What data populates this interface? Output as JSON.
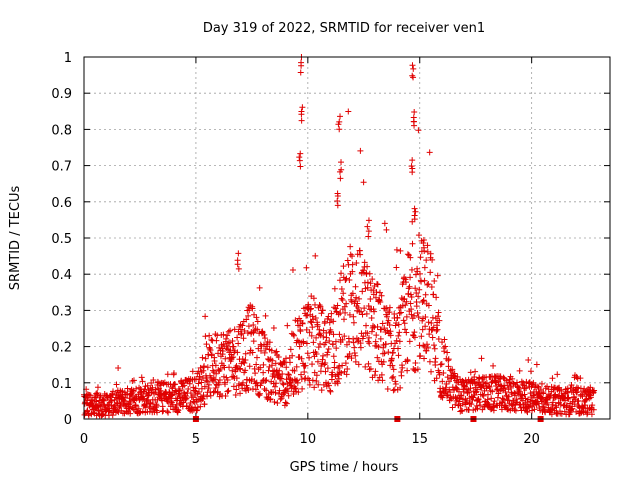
{
  "chart_data": {
    "type": "scatter",
    "title": "Day 319 of 2022, SRMTID for receiver ven1",
    "xlabel": "GPS time / hours",
    "ylabel": "SRMTID / TECUs",
    "xlim": [
      0,
      23.5
    ],
    "ylim": [
      0,
      1
    ],
    "xticks": [
      0,
      5,
      10,
      15,
      20
    ],
    "yticks": [
      0,
      0.1,
      0.2,
      0.3,
      0.4,
      0.5,
      0.6,
      0.7,
      0.8,
      0.9,
      1
    ],
    "grid": true,
    "series": [
      {
        "name": "SRMTID",
        "color": "#e00000",
        "marker": "plus",
        "profile_x": [
          0,
          1,
          2,
          3,
          4,
          5,
          5.5,
          6,
          6.5,
          7,
          7.5,
          8,
          8.5,
          9,
          9.5,
          10,
          10.5,
          11,
          11.5,
          12,
          12.5,
          13,
          13.5,
          14,
          14.5,
          15,
          15.5,
          16,
          16.5,
          17,
          17.5,
          18,
          19,
          20,
          21,
          22,
          22.8
        ],
        "profile_y": [
          0.04,
          0.04,
          0.05,
          0.06,
          0.06,
          0.07,
          0.12,
          0.16,
          0.15,
          0.18,
          0.2,
          0.15,
          0.12,
          0.1,
          0.18,
          0.22,
          0.2,
          0.18,
          0.26,
          0.33,
          0.28,
          0.25,
          0.2,
          0.18,
          0.3,
          0.33,
          0.3,
          0.14,
          0.08,
          0.06,
          0.07,
          0.07,
          0.07,
          0.06,
          0.05,
          0.05,
          0.05
        ],
        "peaks": [
          {
            "x": 6.9,
            "y": 0.46
          },
          {
            "x": 9.7,
            "y": 1.0
          },
          {
            "x": 9.75,
            "y": 0.87
          },
          {
            "x": 9.65,
            "y": 0.74
          },
          {
            "x": 11.4,
            "y": 0.84
          },
          {
            "x": 11.45,
            "y": 0.71
          },
          {
            "x": 11.35,
            "y": 0.63
          },
          {
            "x": 12.7,
            "y": 0.55
          },
          {
            "x": 14.7,
            "y": 0.98
          },
          {
            "x": 14.75,
            "y": 0.85
          },
          {
            "x": 14.65,
            "y": 0.72
          },
          {
            "x": 14.8,
            "y": 0.59
          },
          {
            "x": 15.2,
            "y": 0.5
          }
        ]
      }
    ],
    "axis_markers_x": [
      5.0,
      14.0,
      17.4,
      20.4
    ]
  }
}
